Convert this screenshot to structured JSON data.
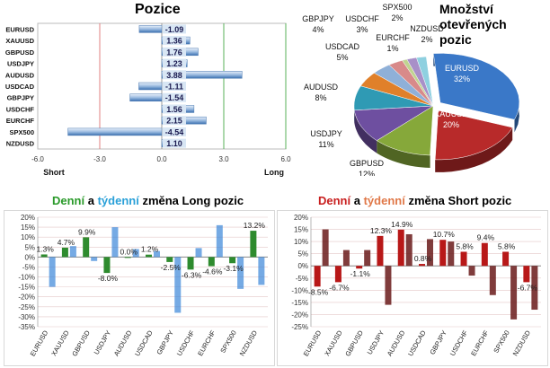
{
  "titles": {
    "pozice": "Pozice",
    "pie": "Množství otevřených pozic",
    "long": {
      "p1": "Denní",
      "p2": " a ",
      "p3": "týdenní",
      "p4": " změna Long pozic"
    },
    "short": {
      "p1": "Denní",
      "p2": " a ",
      "p3": "týdenní",
      "p4": " změna Short pozic"
    }
  },
  "colors": {
    "daily_long": "#2e8b2e",
    "weekly_long": "#3a86d8",
    "daily_short": "#b81818",
    "weekly_short": "#6a1a1a",
    "positions_bar": "#3a6fb0"
  },
  "chart_data": [
    {
      "type": "bar",
      "orientation": "horizontal",
      "categories": [
        "EURUSD",
        "XAUUSD",
        "GBPUSD",
        "USDJPY",
        "AUDUSD",
        "USDCAD",
        "GBPJPY",
        "USDCHF",
        "EURCHF",
        "SPX500",
        "NZDUSD"
      ],
      "values": [
        -1.09,
        1.36,
        1.76,
        1.23,
        3.88,
        -1.11,
        -1.54,
        1.56,
        2.15,
        -4.54,
        1.1
      ],
      "value_labels": [
        "-1.09",
        "1.36",
        "1.76",
        "1.23",
        "3.88",
        "-1.11",
        "-1.54",
        "1.56",
        "2.15",
        "-4.54",
        "1.10"
      ],
      "xlim": [
        -6,
        6
      ],
      "xticks": [
        "-6.0",
        "-3.0",
        "0.0",
        "3.0",
        "6.0"
      ],
      "xlabel_left": "Short",
      "xlabel_right": "Long"
    },
    {
      "type": "pie",
      "labels": [
        "EURUSD",
        "XAUUSD",
        "GBPUSD",
        "USDJPY",
        "AUDUSD",
        "USDCAD",
        "GBPJPY",
        "USDCHF",
        "EURCHF",
        "SPX500",
        "NZDUSD"
      ],
      "values": [
        32,
        20,
        12,
        11,
        8,
        5,
        4,
        3,
        1,
        2,
        2
      ],
      "value_labels": [
        "32%",
        "20%",
        "12%",
        "11%",
        "8%",
        "5%",
        "4%",
        "3%",
        "1%",
        "2%",
        "2%"
      ],
      "colors": [
        "#3a78c8",
        "#b82a2a",
        "#86a83a",
        "#6e4fa0",
        "#2f9ab4",
        "#e0802a",
        "#8fb0d8",
        "#d88a8a",
        "#c0d490",
        "#a890c8",
        "#8ed0e0"
      ]
    },
    {
      "type": "bar",
      "categories": [
        "EURUSD",
        "XAUUSD",
        "GBPUSD",
        "USDJPY",
        "AUDUSD",
        "USDCAD",
        "GBPJPY",
        "USDCHF",
        "EURCHF",
        "SPX500",
        "NZDUSD"
      ],
      "series": [
        {
          "values": [
            1.3,
            4.7,
            9.9,
            -8.0,
            0.0,
            1.2,
            -2.5,
            -6.3,
            -4.6,
            -3.1,
            13.2
          ]
        },
        {
          "values": [
            -15.0,
            5.5,
            -2.0,
            15.0,
            4.0,
            3.0,
            -28.0,
            4.5,
            16.0,
            -16.0,
            -14.0
          ]
        }
      ],
      "data_labels": [
        "1.3%",
        "4.7%",
        "9.9%",
        "-8.0%",
        "0.0%",
        "1.2%",
        "-2.5%",
        "-6.3%",
        "-4.6%",
        "-3.1%",
        "13.2%"
      ],
      "ylim": [
        -35,
        20
      ],
      "yticks": [
        "20%",
        "15%",
        "10%",
        "5%",
        "0%",
        "-5%",
        "-10%",
        "-15%",
        "-20%",
        "-25%",
        "-30%",
        "-35%"
      ]
    },
    {
      "type": "bar",
      "categories": [
        "EURUSD",
        "XAUUSD",
        "GBPUSD",
        "USDJPY",
        "AUDUSD",
        "USDCAD",
        "GBPJPY",
        "USDCHF",
        "EURCHF",
        "SPX500",
        "NZDUSD"
      ],
      "series": [
        {
          "values": [
            -8.5,
            -6.7,
            -1.1,
            12.3,
            14.9,
            0.8,
            10.7,
            5.8,
            9.4,
            5.8,
            -6.7
          ]
        },
        {
          "values": [
            15.0,
            6.5,
            6.5,
            -16.0,
            13.0,
            11.0,
            10.0,
            -4.0,
            -12.0,
            -22.0,
            -18.0
          ]
        }
      ],
      "data_labels": [
        "-8.5%",
        "-6.7%",
        "-1.1%",
        "12.3%",
        "14.9%",
        "0.8%",
        "10.7%",
        "5.8%",
        "9.4%",
        "5.8%",
        "-6.7%"
      ],
      "ylim": [
        -25,
        20
      ],
      "yticks": [
        "20%",
        "15%",
        "10%",
        "5%",
        "0%",
        "-5%",
        "-10%",
        "-15%",
        "-20%",
        "-25%"
      ]
    }
  ]
}
